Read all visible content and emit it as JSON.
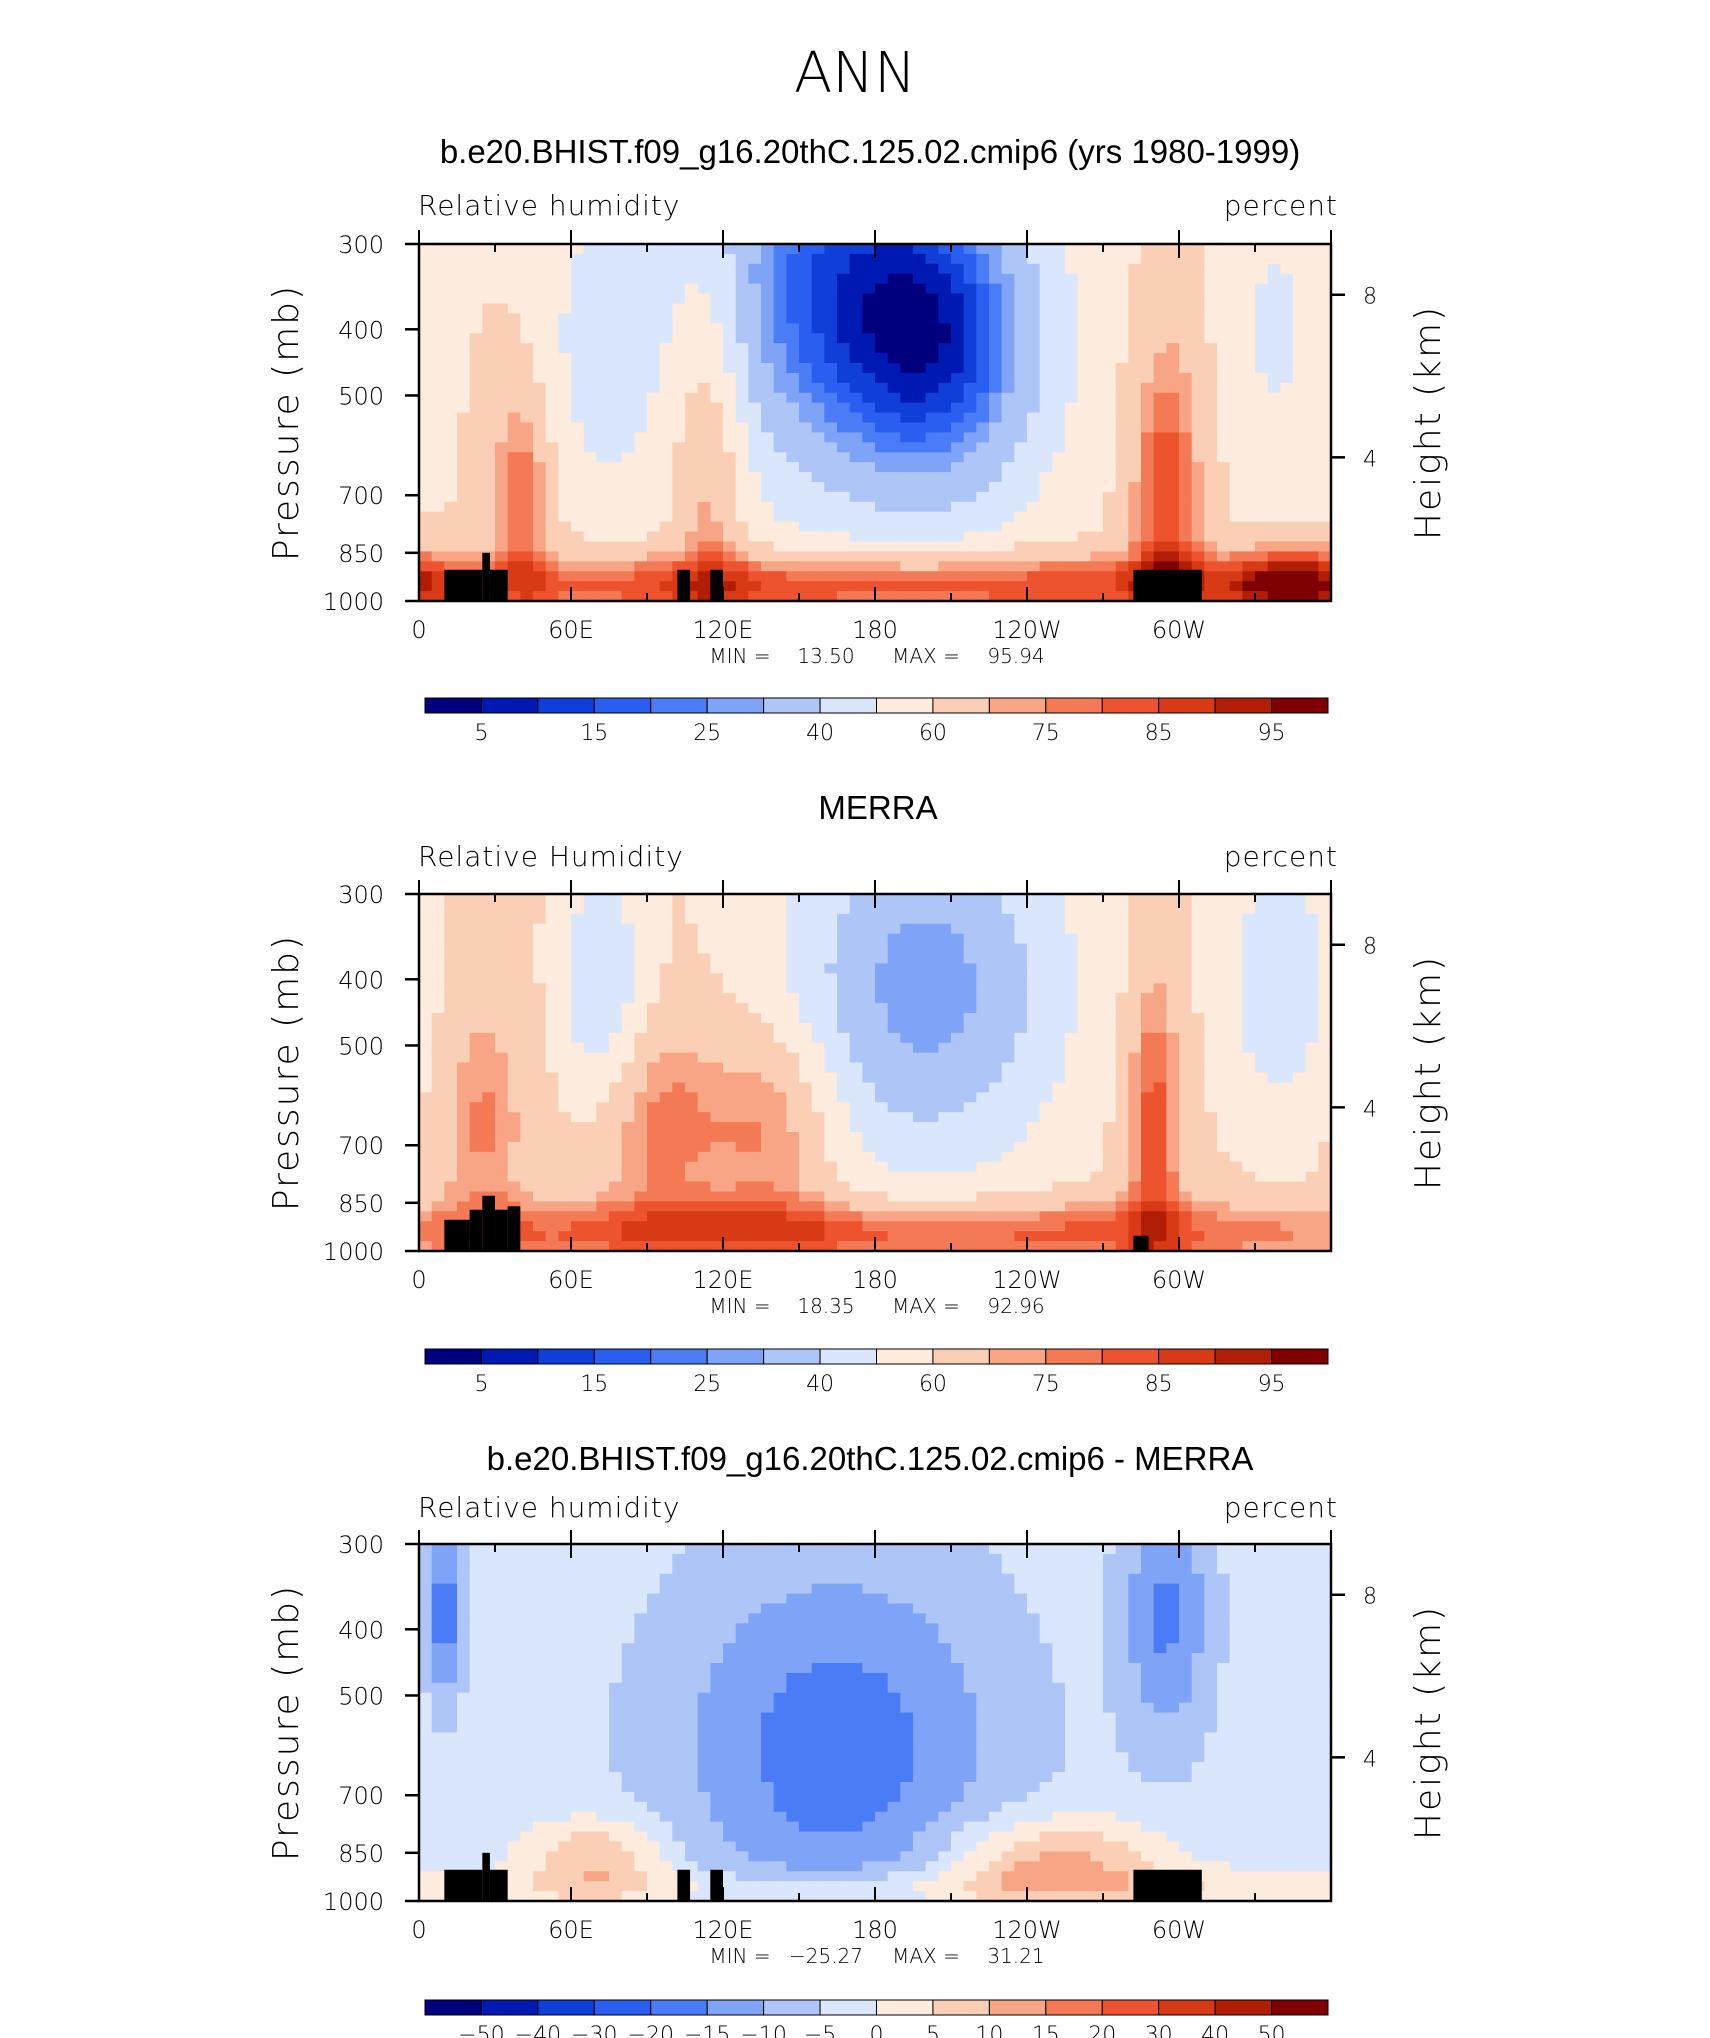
{
  "page": {
    "title": "ANN"
  },
  "panels": [
    {
      "title": "b.e20.BHIST.f09_g16.20thC.125.02.cmip6 (yrs 1980-1999)",
      "left_label": "Relative humidity",
      "right_label": "percent",
      "stats": {
        "min_label": "MIN =",
        "min": "13.50",
        "max_label": "MAX =",
        "max": "95.94"
      },
      "colorbar_labels": [
        "5",
        "15",
        "25",
        "40",
        "60",
        "75",
        "85",
        "95"
      ]
    },
    {
      "title": "MERRA",
      "left_label": "Relative Humidity",
      "right_label": "percent",
      "stats": {
        "min_label": "MIN =",
        "min": "18.35",
        "max_label": "MAX =",
        "max": "92.96"
      },
      "colorbar_labels": [
        "5",
        "15",
        "25",
        "40",
        "60",
        "75",
        "85",
        "95"
      ]
    },
    {
      "title": "b.e20.BHIST.f09_g16.20thC.125.02.cmip6 - MERRA",
      "left_label": "Relative humidity",
      "right_label": "percent",
      "stats": {
        "min_label": "MIN =",
        "min": "−25.27",
        "max_label": "MAX =",
        "max": "31.21"
      },
      "colorbar_labels": [
        "−50",
        "−40",
        "−30",
        "−20",
        "−15",
        "−10",
        "−5",
        "0",
        "5",
        "10",
        "15",
        "20",
        "30",
        "40",
        "50"
      ]
    }
  ],
  "axes": {
    "ylabel_left": "Pressure (mb)",
    "ylabel_right": "Height (km)",
    "yticks_left": [
      "300",
      "400",
      "500",
      "700",
      "850",
      "1000"
    ],
    "yticks_right": [
      "8",
      "4"
    ],
    "xticks": [
      "0",
      "60E",
      "120E",
      "180",
      "120W",
      "60W"
    ]
  },
  "colors": {
    "abs_scale": [
      "#00007f",
      "#0019b2",
      "#0f3ed8",
      "#2a5ef0",
      "#4a7df5",
      "#7fa3f6",
      "#aec6f7",
      "#d9e6fb",
      "#fdebdd",
      "#fbcfb5",
      "#f8a585",
      "#f47a55",
      "#ec532e",
      "#d83a16",
      "#b21d06",
      "#7f0000"
    ],
    "diff_scale": [
      "#00007f",
      "#0019b2",
      "#0f3ed8",
      "#2a5ef0",
      "#4a7df5",
      "#7fa3f6",
      "#aec6f7",
      "#d9e6fb",
      "#fdebdd",
      "#fbcfb5",
      "#f8a585",
      "#f47a55",
      "#ec532e",
      "#d83a16",
      "#b21d06",
      "#7f0000"
    ],
    "land": "#000000"
  },
  "chart_data": [
    {
      "type": "heatmap",
      "title": "b.e20.BHIST.f09_g16.20thC.125.02.cmip6 (yrs 1980-1999)",
      "xlabel": "",
      "ylabel": "Pressure (mb)",
      "xlim": [
        0,
        360
      ],
      "ylim": [
        1000,
        300
      ],
      "y_log": true,
      "levels": [
        5,
        10,
        15,
        20,
        25,
        30,
        40,
        50,
        60,
        70,
        75,
        80,
        85,
        90,
        95
      ],
      "min": 13.5,
      "max": 95.94,
      "background": 60,
      "features": [
        {
          "lon": 72,
          "p": 420,
          "v": 44,
          "w": 14,
          "h": 0.35,
          "k": 1
        },
        {
          "lon": 158,
          "p": 340,
          "v": 22,
          "w": 38,
          "h": 0.5,
          "k": 1
        },
        {
          "lon": 208,
          "p": 420,
          "v": 20,
          "w": 30,
          "h": 0.4,
          "k": 1
        },
        {
          "lon": 338,
          "p": 400,
          "v": 48,
          "w": 14,
          "h": 0.35,
          "k": 1
        },
        {
          "lon": 40,
          "p": 700,
          "v": 80,
          "w": 8,
          "h": 0.25,
          "k": 1
        },
        {
          "lon": 115,
          "p": 600,
          "v": 78,
          "w": 10,
          "h": 0.45,
          "k": 1
        },
        {
          "lon": 295,
          "p": 700,
          "v": 84,
          "w": 10,
          "h": 0.4,
          "k": 1
        },
        {
          "lon": 180,
          "p": 950,
          "v": 88,
          "w": 160,
          "h": 0.08,
          "k": 1
        },
        {
          "lon": 345,
          "p": 940,
          "v": 88,
          "w": 18,
          "h": 0.08,
          "k": 1
        }
      ],
      "land": [
        [
          10,
          25,
          1000,
          900
        ],
        [
          25,
          28,
          1000,
          850
        ],
        [
          28,
          35,
          1000,
          900
        ],
        [
          102,
          107,
          1000,
          900
        ],
        [
          115,
          120,
          1000,
          900
        ],
        [
          282,
          309,
          1000,
          900
        ]
      ]
    },
    {
      "type": "heatmap",
      "title": "MERRA",
      "xlabel": "",
      "ylabel": "Pressure (mb)",
      "xlim": [
        0,
        360
      ],
      "ylim": [
        1000,
        300
      ],
      "y_log": true,
      "levels": [
        5,
        10,
        15,
        20,
        25,
        30,
        40,
        50,
        60,
        70,
        75,
        80,
        85,
        90,
        95
      ],
      "min": 18.35,
      "max": 92.96,
      "background": 62,
      "features": [
        {
          "lon": 72,
          "p": 410,
          "v": 40,
          "w": 12,
          "h": 0.3,
          "k": 1
        },
        {
          "lon": 200,
          "p": 410,
          "v": 26,
          "w": 40,
          "h": 0.45,
          "k": 1
        },
        {
          "lon": 340,
          "p": 400,
          "v": 42,
          "w": 16,
          "h": 0.35,
          "k": 1
        },
        {
          "lon": 25,
          "p": 650,
          "v": 76,
          "w": 12,
          "h": 0.3,
          "k": 1
        },
        {
          "lon": 95,
          "p": 650,
          "v": 78,
          "w": 18,
          "h": 0.25,
          "k": 1
        },
        {
          "lon": 140,
          "p": 650,
          "v": 80,
          "w": 18,
          "h": 0.25,
          "k": 1
        },
        {
          "lon": 290,
          "p": 650,
          "v": 84,
          "w": 8,
          "h": 0.4,
          "k": 1
        },
        {
          "lon": 180,
          "p": 940,
          "v": 86,
          "w": 160,
          "h": 0.08,
          "k": 1
        }
      ],
      "land": [
        [
          10,
          20,
          1000,
          900
        ],
        [
          20,
          25,
          1000,
          870
        ],
        [
          25,
          30,
          1000,
          830
        ],
        [
          30,
          35,
          1000,
          870
        ],
        [
          35,
          40,
          1000,
          860
        ],
        [
          282,
          288,
          1000,
          950
        ]
      ]
    },
    {
      "type": "heatmap",
      "title": "b.e20.BHIST.f09_g16.20thC.125.02.cmip6 - MERRA",
      "xlabel": "",
      "ylabel": "Pressure (mb)",
      "xlim": [
        0,
        360
      ],
      "ylim": [
        1000,
        300
      ],
      "y_log": true,
      "levels": [
        -50,
        -40,
        -30,
        -20,
        -15,
        -10,
        -5,
        0,
        5,
        10,
        15,
        20,
        30,
        40,
        50
      ],
      "min": -25.27,
      "max": 31.21,
      "background": -3,
      "features": [
        {
          "lon": 10,
          "p": 380,
          "v": -18,
          "w": 5,
          "h": 0.2,
          "k": 1
        },
        {
          "lon": 165,
          "p": 600,
          "v": -18,
          "w": 45,
          "h": 0.45,
          "k": 1
        },
        {
          "lon": 295,
          "p": 380,
          "v": -16,
          "w": 12,
          "h": 0.3,
          "k": 1
        },
        {
          "lon": 70,
          "p": 870,
          "v": 10,
          "w": 20,
          "h": 0.1,
          "k": 1
        },
        {
          "lon": 250,
          "p": 870,
          "v": 12,
          "w": 30,
          "h": 0.1,
          "k": 1
        },
        {
          "lon": 230,
          "p": 960,
          "v": 5,
          "w": 150,
          "h": 0.05,
          "k": 1
        }
      ],
      "land": [
        [
          10,
          25,
          1000,
          900
        ],
        [
          25,
          28,
          1000,
          850
        ],
        [
          28,
          35,
          1000,
          900
        ],
        [
          102,
          107,
          1000,
          900
        ],
        [
          115,
          120,
          1000,
          900
        ],
        [
          282,
          309,
          1000,
          900
        ]
      ]
    }
  ]
}
